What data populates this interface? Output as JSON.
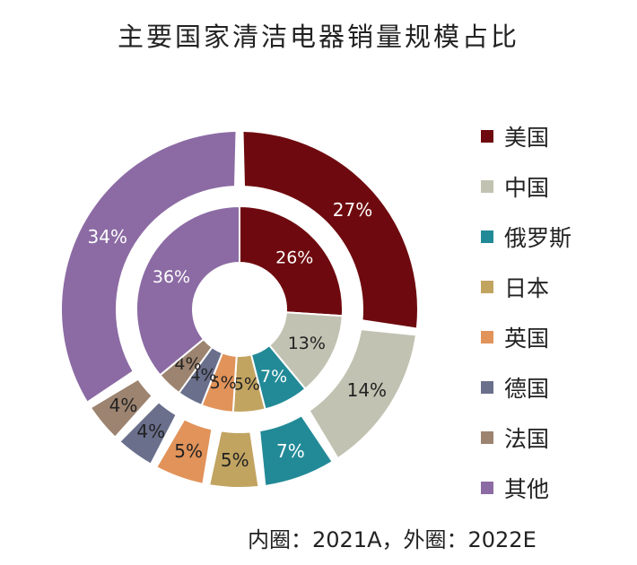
{
  "title": "主要国家清洁电器销量规模占比",
  "footnote": "内圈：2021A，外圈：2022E",
  "colors": [
    "#6e0a0f",
    "#c2c2b2",
    "#228a97",
    "#c2a461",
    "#e1935a",
    "#6a6f8c",
    "#9c8470",
    "#8c6ba4"
  ],
  "chart_data": {
    "type": "pie",
    "subtype": "nested-donut",
    "categories": [
      "美国",
      "中国",
      "俄罗斯",
      "日本",
      "英国",
      "德国",
      "法国",
      "其他"
    ],
    "series": [
      {
        "name": "2021A",
        "ring": "inner",
        "values": [
          26,
          13,
          7,
          5,
          5,
          4,
          4,
          36
        ],
        "labels": [
          "26%",
          "13%",
          "7%",
          "5%",
          "5%",
          "4%",
          "4%",
          "36%"
        ]
      },
      {
        "name": "2022E",
        "ring": "outer",
        "values": [
          27,
          14,
          7,
          5,
          5,
          4,
          4,
          34
        ],
        "labels": [
          "27%",
          "14%",
          "7%",
          "5%",
          "5%",
          "4%",
          "4%",
          "34%"
        ]
      }
    ],
    "legend_position": "right"
  }
}
